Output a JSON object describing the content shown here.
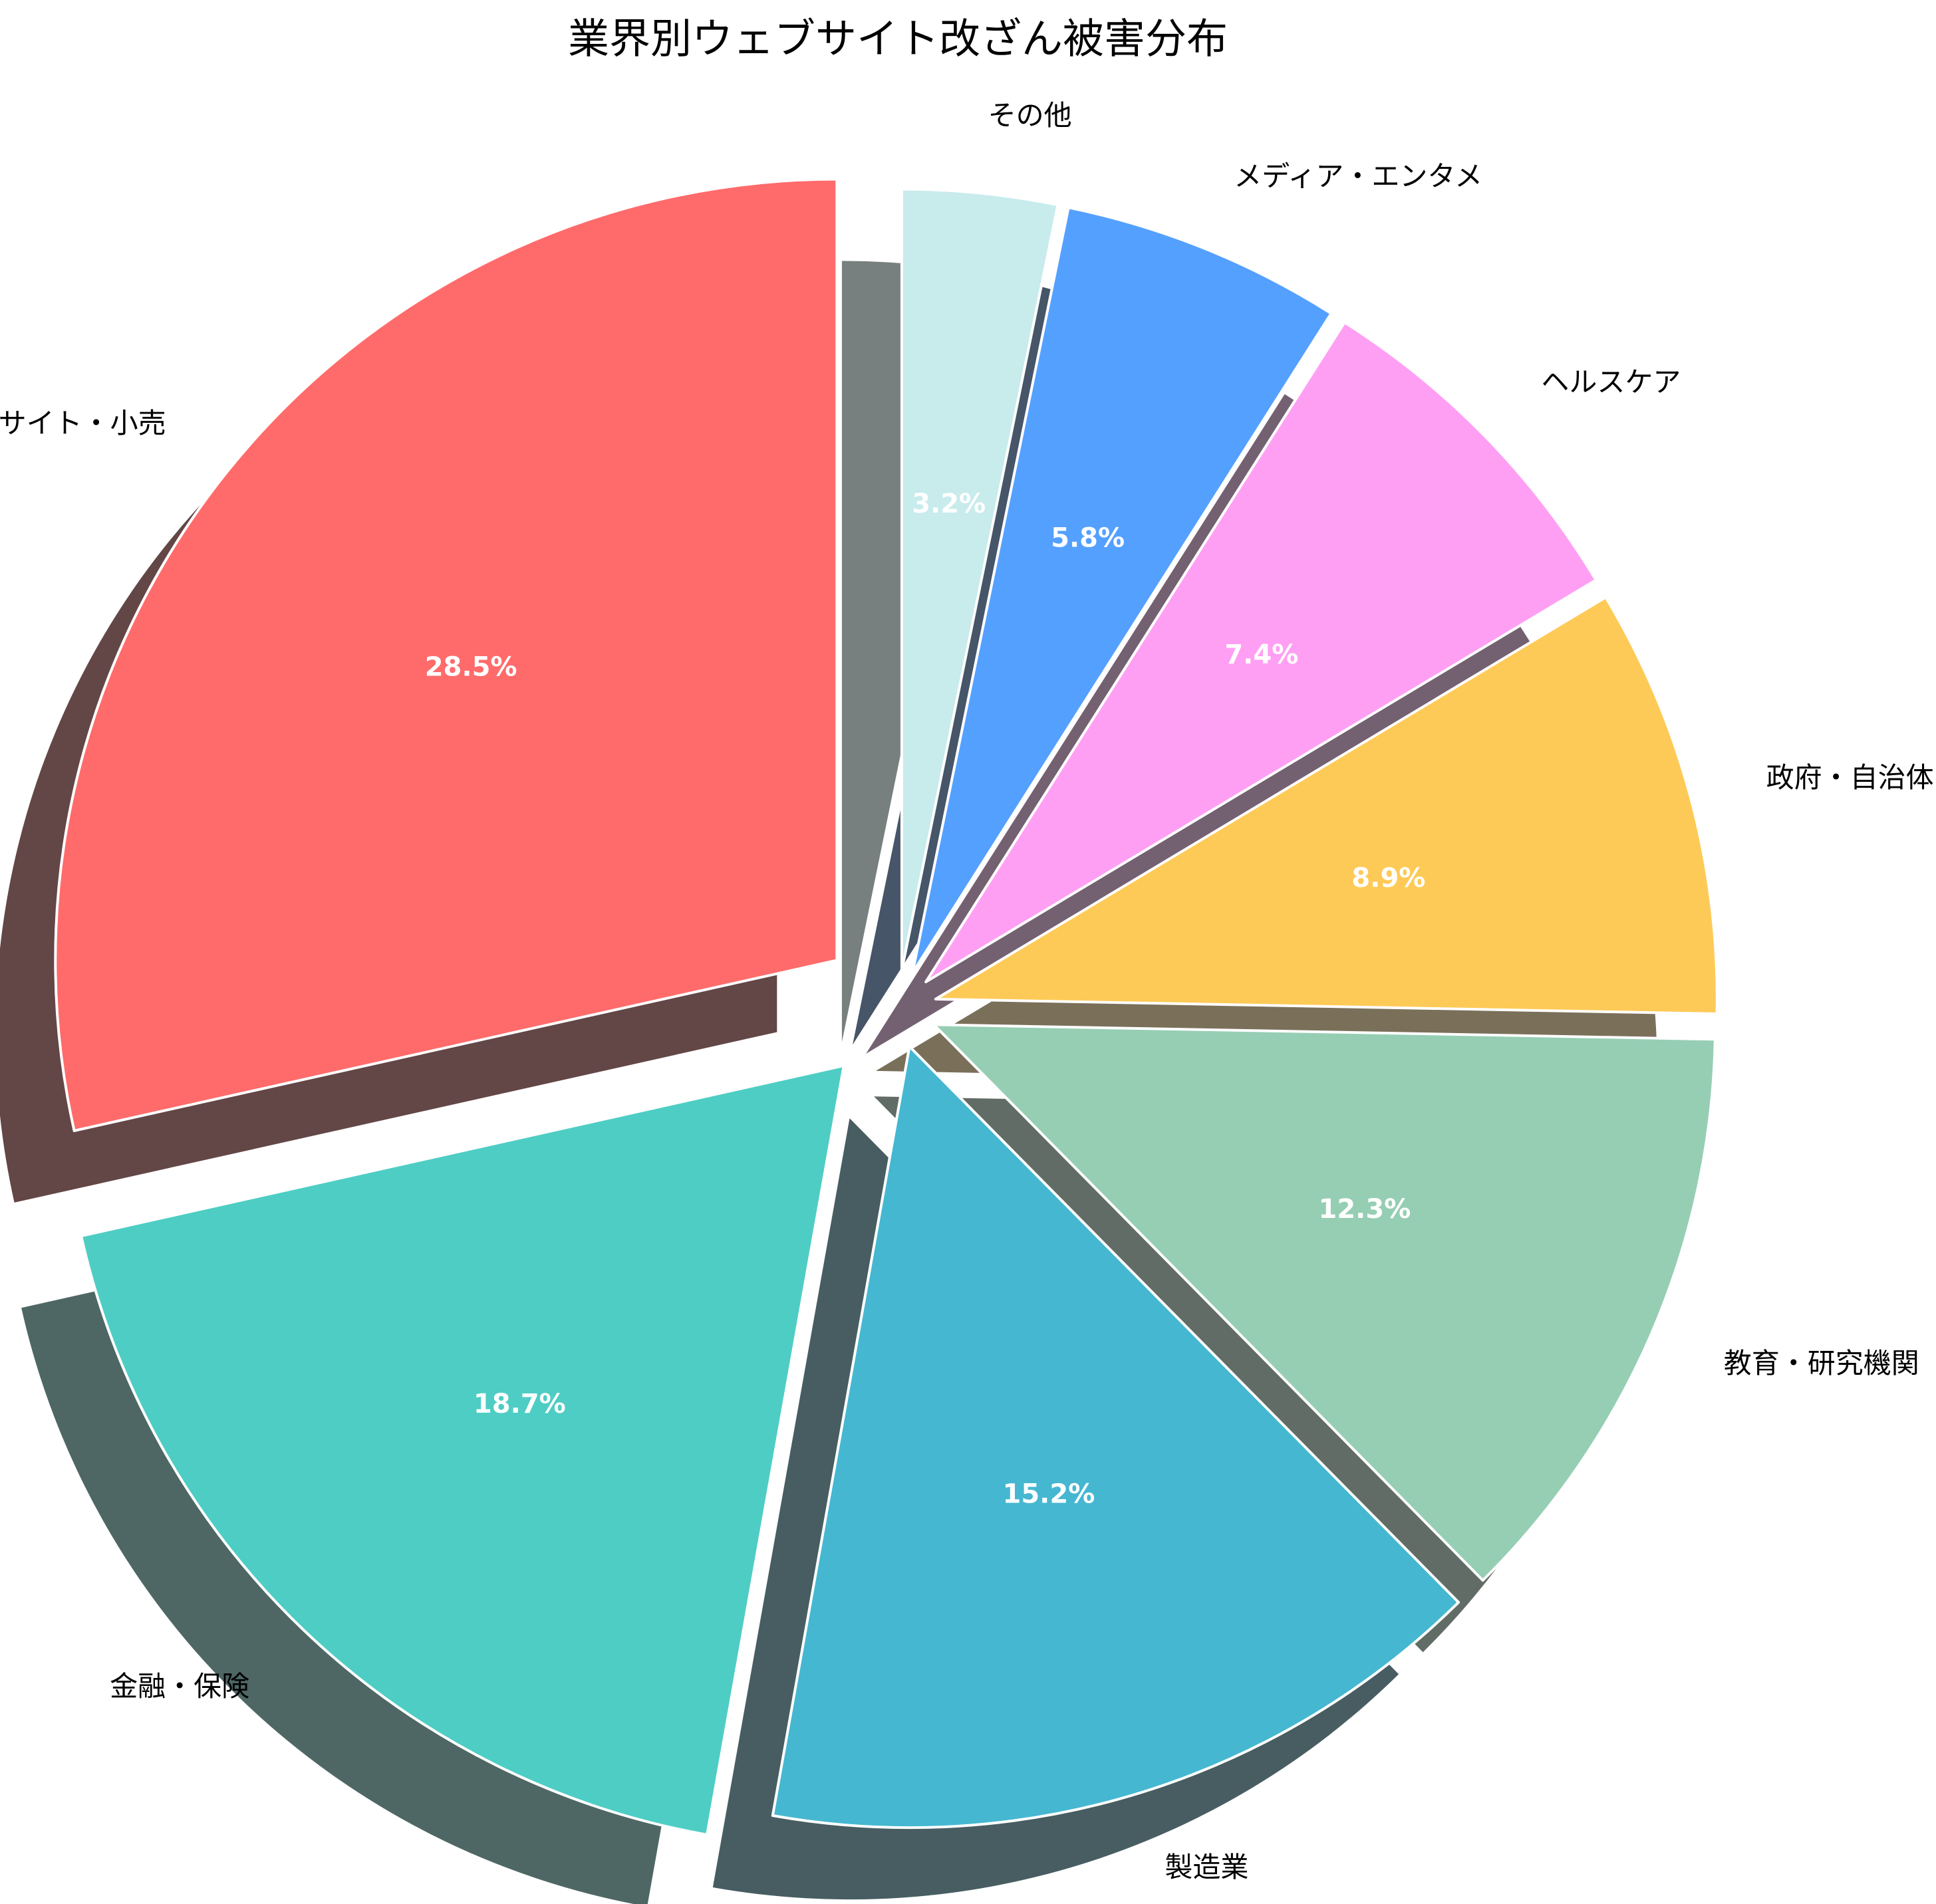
{
  "chart_data": {
    "type": "pie",
    "title": "業界別ウェブサイト改ざん被害分布",
    "start_angle_deg": 90,
    "direction": "counterclockwise",
    "shadow": true,
    "slices": [
      {
        "label": "ECサイト・小売",
        "value": 28.5,
        "pct_label": "28.5%",
        "color": "#FF6B6B",
        "explode": 0.1
      },
      {
        "label": "金融・保険",
        "value": 18.7,
        "pct_label": "18.7%",
        "color": "#4ECDC4",
        "explode": 0.1
      },
      {
        "label": "製造業",
        "value": 15.2,
        "pct_label": "15.2%",
        "color": "#45B7D1",
        "explode": 0.05
      },
      {
        "label": "教育・研究機関",
        "value": 12.3,
        "pct_label": "12.3%",
        "color": "#96CEB4",
        "explode": 0.05
      },
      {
        "label": "政府・自治体",
        "value": 8.9,
        "pct_label": "8.9%",
        "color": "#FECA57",
        "explode": 0.05
      },
      {
        "label": "ヘルスケア",
        "value": 7.4,
        "pct_label": "7.4%",
        "color": "#FF9FF3",
        "explode": 0.05
      },
      {
        "label": "メディア・エンタメ",
        "value": 5.8,
        "pct_label": "5.8%",
        "color": "#54A0FF",
        "explode": 0.05
      },
      {
        "label": "その他",
        "value": 3.2,
        "pct_label": "3.2%",
        "color": "#C8EBEC",
        "explode": 0.05
      }
    ]
  }
}
